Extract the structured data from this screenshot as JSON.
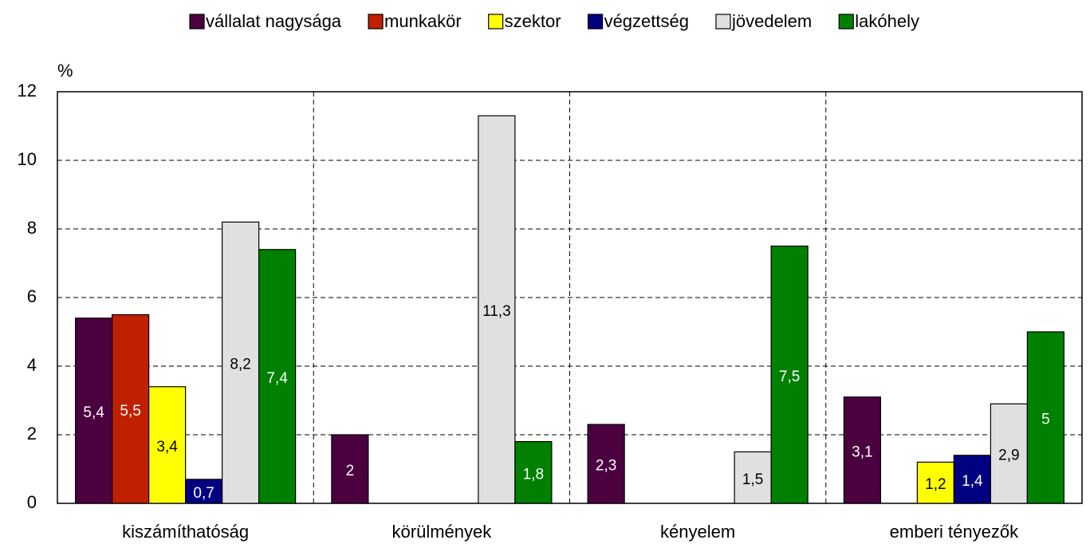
{
  "chart_data": {
    "type": "bar",
    "y_label": "%",
    "categories": [
      "kiszámíthatóság",
      "körülmények",
      "kényelem",
      "emberi tényezők"
    ],
    "series": [
      {
        "name": "vállalat nagysága",
        "color": "#4b0040",
        "values": [
          5.4,
          2,
          2.3,
          3.1
        ],
        "value_labels": [
          "5,4",
          "2",
          "2,3",
          "3,1"
        ]
      },
      {
        "name": "munkakör",
        "color": "#c02000",
        "values": [
          5.5,
          null,
          null,
          null
        ],
        "value_labels": [
          "5,5",
          null,
          null,
          null
        ]
      },
      {
        "name": "szektor",
        "color": "#ffff00",
        "values": [
          3.4,
          null,
          null,
          1.2
        ],
        "value_labels": [
          "3,4",
          null,
          null,
          "1,2"
        ]
      },
      {
        "name": "végzettség",
        "color": "#000080",
        "values": [
          0.7,
          null,
          null,
          1.4
        ],
        "value_labels": [
          "0,7",
          null,
          null,
          "1,4"
        ]
      },
      {
        "name": "jövedelem",
        "color": "#e0e0e0",
        "values": [
          8.2,
          11.3,
          1.5,
          2.9
        ],
        "value_labels": [
          "8,2",
          "11,3",
          "1,5",
          "2,9"
        ]
      },
      {
        "name": "lakóhely",
        "color": "#008000",
        "values": [
          7.4,
          1.8,
          7.5,
          5
        ],
        "value_labels": [
          "7,4",
          "1,8",
          "7,5",
          "5"
        ]
      }
    ],
    "ylim": [
      0,
      12
    ],
    "yticks": [
      0,
      2,
      4,
      6,
      8,
      10,
      12
    ],
    "grid": true,
    "legend": "top"
  }
}
